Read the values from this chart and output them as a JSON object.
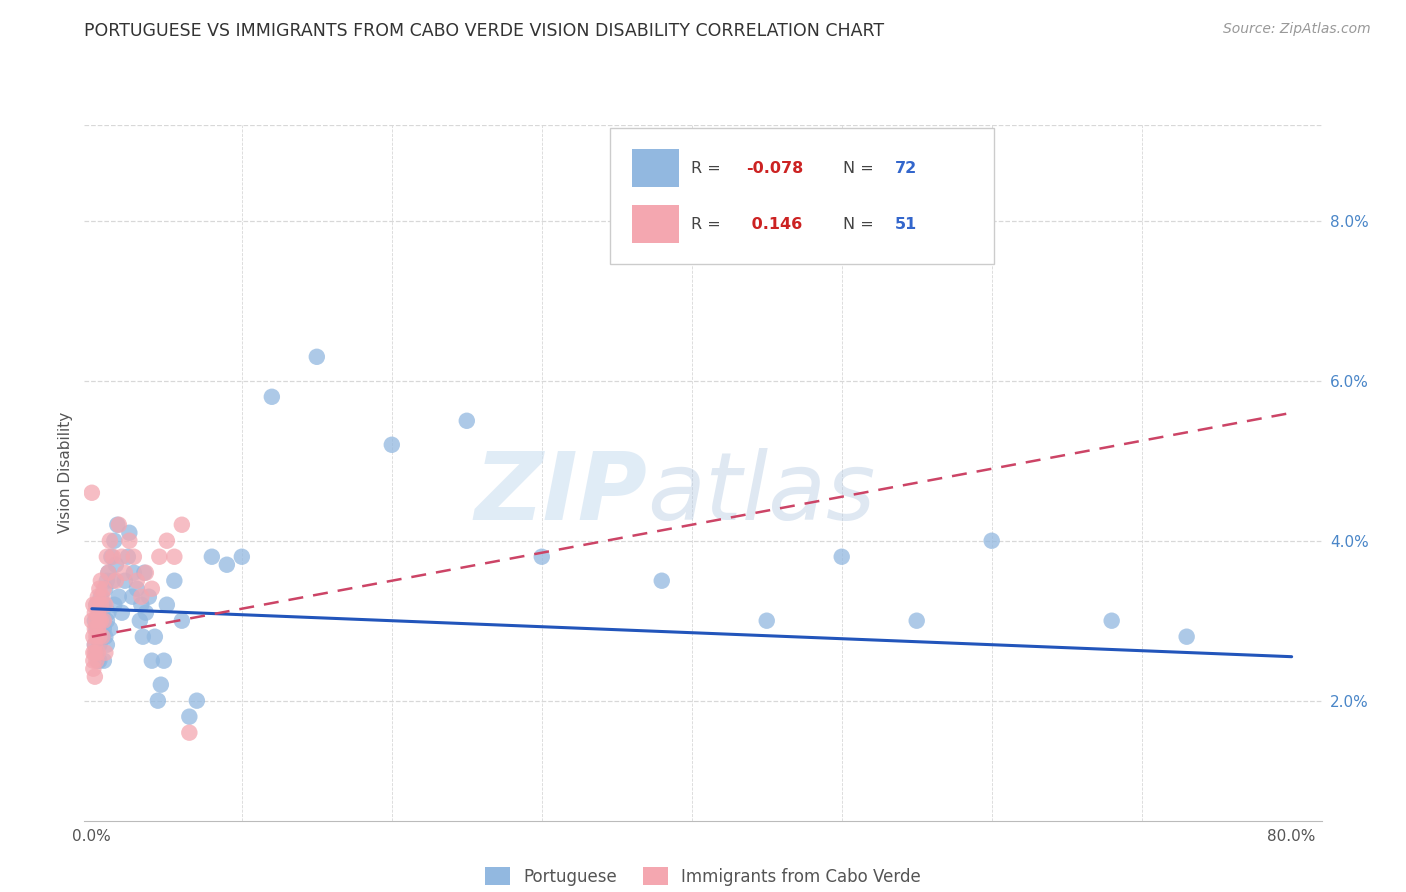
{
  "title": "PORTUGUESE VS IMMIGRANTS FROM CABO VERDE VISION DISABILITY CORRELATION CHART",
  "source": "Source: ZipAtlas.com",
  "ylabel": "Vision Disability",
  "color_blue": "#92b8e0",
  "color_pink": "#f4a7b0",
  "line_blue": "#2255bb",
  "line_pink": "#cc4466",
  "watermark_zip": "ZIP",
  "watermark_atlas": "atlas",
  "xlim_min": -0.005,
  "xlim_max": 0.82,
  "ylim_min": 0.005,
  "ylim_max": 0.092,
  "port_line_x0": 0.0,
  "port_line_x1": 0.8,
  "port_line_y0": 0.0315,
  "port_line_y1": 0.0255,
  "cv_line_x0": 0.0,
  "cv_line_x1": 0.8,
  "cv_line_y0": 0.028,
  "cv_line_y1": 0.056,
  "port_x": [
    0.002,
    0.002,
    0.003,
    0.003,
    0.003,
    0.004,
    0.004,
    0.004,
    0.005,
    0.005,
    0.005,
    0.005,
    0.006,
    0.006,
    0.007,
    0.007,
    0.008,
    0.008,
    0.008,
    0.009,
    0.009,
    0.01,
    0.01,
    0.01,
    0.011,
    0.011,
    0.012,
    0.013,
    0.014,
    0.015,
    0.015,
    0.016,
    0.017,
    0.018,
    0.02,
    0.022,
    0.024,
    0.025,
    0.027,
    0.028,
    0.03,
    0.032,
    0.033,
    0.034,
    0.035,
    0.036,
    0.038,
    0.04,
    0.042,
    0.044,
    0.046,
    0.048,
    0.05,
    0.055,
    0.06,
    0.065,
    0.07,
    0.08,
    0.09,
    0.1,
    0.12,
    0.15,
    0.2,
    0.25,
    0.3,
    0.38,
    0.45,
    0.5,
    0.55,
    0.6,
    0.68,
    0.73
  ],
  "port_y": [
    0.03,
    0.027,
    0.029,
    0.032,
    0.026,
    0.03,
    0.028,
    0.025,
    0.029,
    0.031,
    0.027,
    0.025,
    0.03,
    0.033,
    0.031,
    0.028,
    0.032,
    0.029,
    0.025,
    0.034,
    0.028,
    0.035,
    0.03,
    0.027,
    0.036,
    0.031,
    0.029,
    0.038,
    0.035,
    0.04,
    0.032,
    0.037,
    0.042,
    0.033,
    0.031,
    0.035,
    0.038,
    0.041,
    0.033,
    0.036,
    0.034,
    0.03,
    0.032,
    0.028,
    0.036,
    0.031,
    0.033,
    0.025,
    0.028,
    0.02,
    0.022,
    0.025,
    0.032,
    0.035,
    0.03,
    0.018,
    0.02,
    0.038,
    0.037,
    0.038,
    0.058,
    0.063,
    0.052,
    0.055,
    0.038,
    0.035,
    0.03,
    0.038,
    0.03,
    0.04,
    0.03,
    0.028
  ],
  "cv_x": [
    0.0,
    0.0,
    0.001,
    0.001,
    0.001,
    0.001,
    0.001,
    0.002,
    0.002,
    0.002,
    0.002,
    0.002,
    0.003,
    0.003,
    0.003,
    0.003,
    0.004,
    0.004,
    0.004,
    0.004,
    0.005,
    0.005,
    0.005,
    0.006,
    0.006,
    0.006,
    0.007,
    0.007,
    0.008,
    0.008,
    0.009,
    0.009,
    0.01,
    0.011,
    0.012,
    0.014,
    0.016,
    0.018,
    0.02,
    0.022,
    0.025,
    0.028,
    0.03,
    0.033,
    0.036,
    0.04,
    0.045,
    0.05,
    0.055,
    0.06,
    0.065
  ],
  "cv_y": [
    0.03,
    0.046,
    0.032,
    0.028,
    0.026,
    0.025,
    0.024,
    0.029,
    0.031,
    0.027,
    0.026,
    0.023,
    0.03,
    0.032,
    0.028,
    0.025,
    0.033,
    0.031,
    0.029,
    0.026,
    0.034,
    0.03,
    0.028,
    0.035,
    0.032,
    0.03,
    0.033,
    0.028,
    0.034,
    0.03,
    0.032,
    0.026,
    0.038,
    0.036,
    0.04,
    0.038,
    0.035,
    0.042,
    0.038,
    0.036,
    0.04,
    0.038,
    0.035,
    0.033,
    0.036,
    0.034,
    0.038,
    0.04,
    0.038,
    0.042,
    0.016
  ]
}
